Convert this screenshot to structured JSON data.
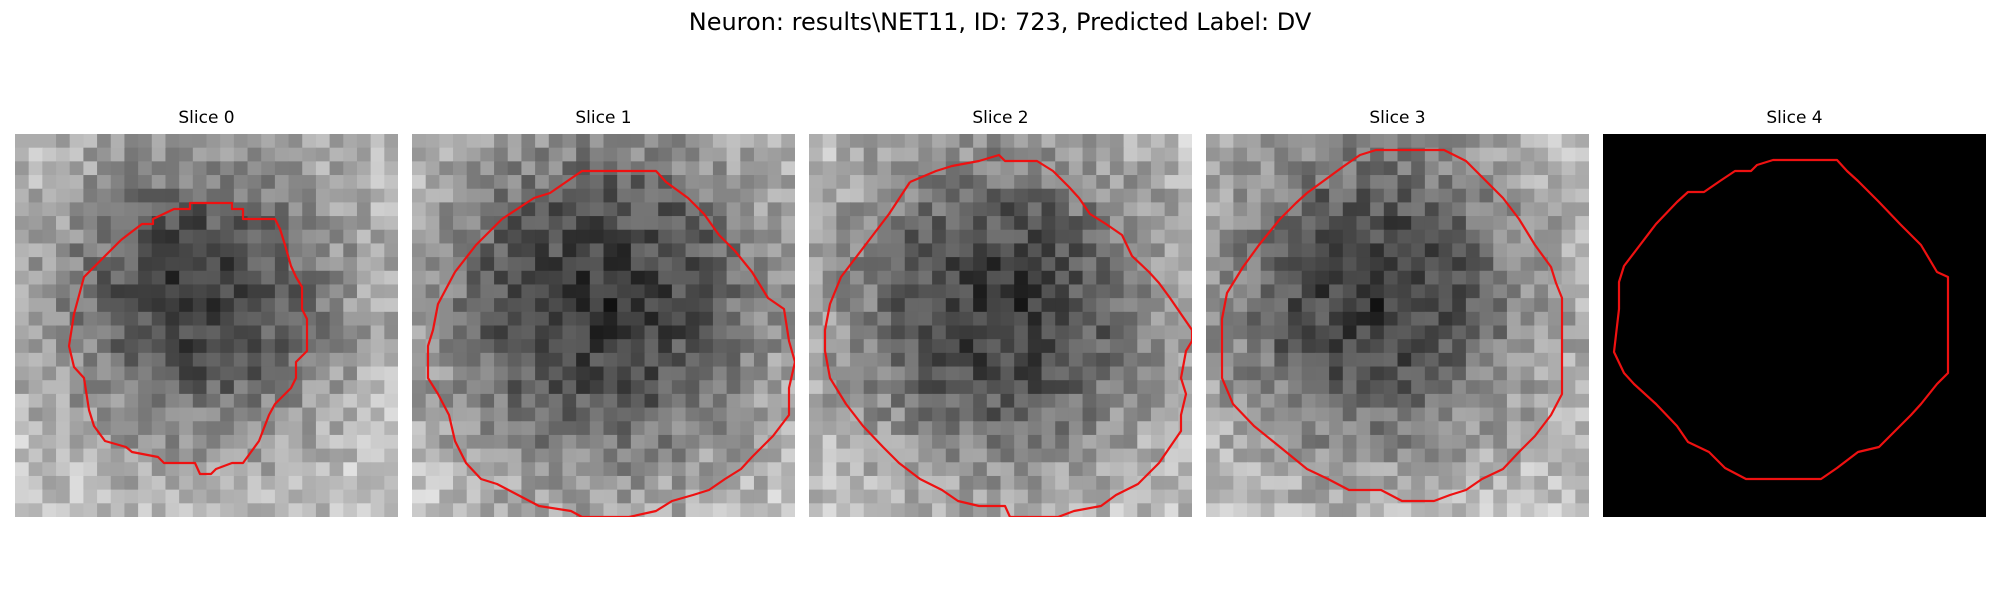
{
  "figure": {
    "title": "Neuron: results\\NET11, ID: 723, Predicted Label: DV"
  },
  "contour_color": "#ee1111",
  "slices": [
    {
      "label": "Slice 0",
      "mode": "grayscale",
      "seed": 11,
      "dark_center": [
        0.48,
        0.42
      ],
      "dark_radius": 0.26
    },
    {
      "label": "Slice 1",
      "mode": "grayscale",
      "seed": 23,
      "dark_center": [
        0.5,
        0.44
      ],
      "dark_radius": 0.33
    },
    {
      "label": "Slice 2",
      "mode": "grayscale",
      "seed": 37,
      "dark_center": [
        0.5,
        0.45
      ],
      "dark_radius": 0.3
    },
    {
      "label": "Slice 3",
      "mode": "grayscale",
      "seed": 49,
      "dark_center": [
        0.44,
        0.42
      ],
      "dark_radius": 0.3
    },
    {
      "label": "Slice 4",
      "mode": "black"
    }
  ]
}
